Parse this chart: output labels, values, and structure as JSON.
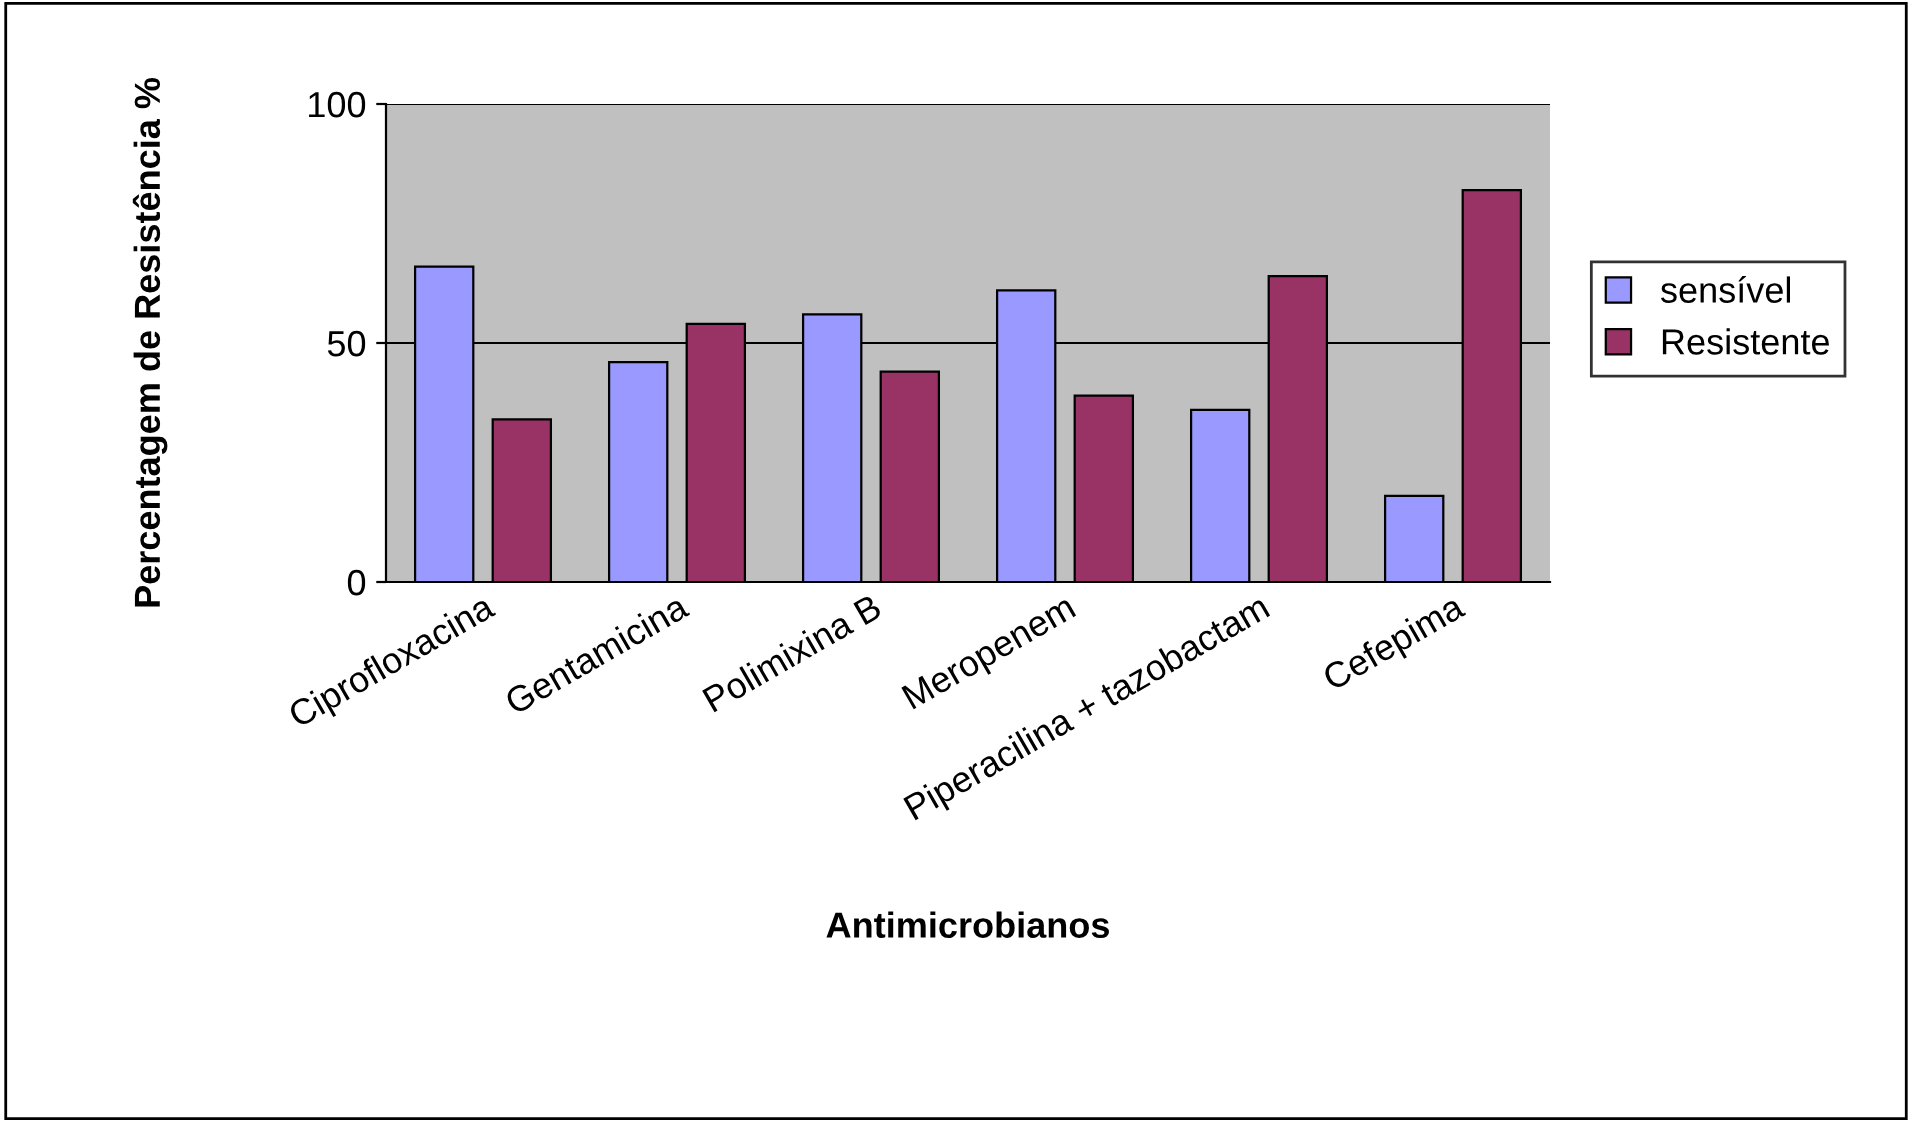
{
  "chart_data": {
    "type": "bar",
    "xlabel": "Antimicrobianos",
    "ylabel": "Percentagem de Resistência %",
    "categories": [
      "Ciprofloxacina",
      "Gentamicina",
      "Polimixina B",
      "Meropenem",
      "Piperacilina + tazobactam",
      "Cefepima"
    ],
    "series": [
      {
        "name": "sensível",
        "color": "#9999ff",
        "values": [
          66,
          46,
          56,
          61,
          36,
          18
        ]
      },
      {
        "name": "Resistente",
        "color": "#993366",
        "values": [
          34,
          54,
          44,
          39,
          64,
          82
        ]
      }
    ],
    "ylim": [
      0,
      100
    ],
    "yticks": [
      0,
      50,
      100
    ],
    "grid": "y",
    "legend": "right"
  }
}
